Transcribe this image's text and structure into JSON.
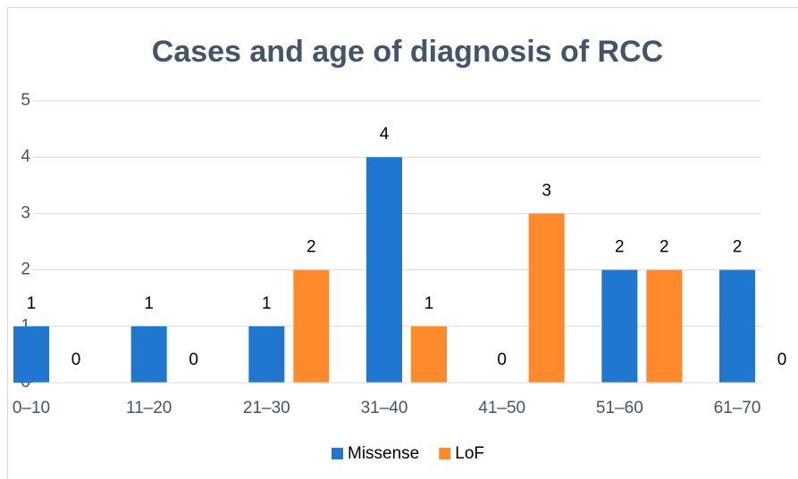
{
  "chart_data": {
    "type": "bar",
    "title": "Cases and age of diagnosis of RCC",
    "categories": [
      "0–10",
      "11–20",
      "21–30",
      "31–40",
      "41–50",
      "51–60",
      "61–70"
    ],
    "series": [
      {
        "name": "Missense",
        "color": "#1f77d0",
        "values": [
          1,
          1,
          1,
          4,
          0,
          2,
          2
        ]
      },
      {
        "name": "LoF",
        "color": "#ff8a2b",
        "values": [
          0,
          0,
          2,
          1,
          3,
          2,
          0
        ]
      }
    ],
    "ylim": [
      0,
      5
    ],
    "yticks": [
      0,
      1,
      2,
      3,
      4,
      5
    ],
    "grid": true,
    "legend": "bottom"
  }
}
